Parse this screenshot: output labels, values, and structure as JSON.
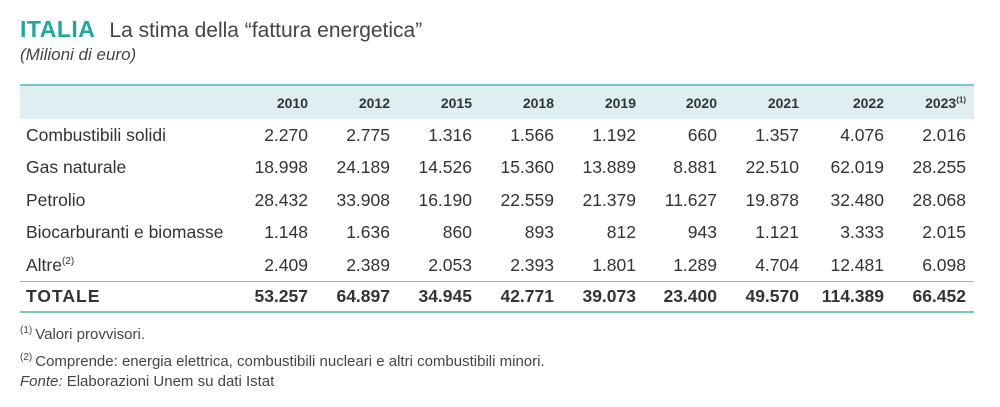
{
  "header": {
    "country": "ITALIA",
    "title": "La stima della “fattura energetica”",
    "subtitle": "(Milioni di euro)"
  },
  "table": {
    "years": [
      "2010",
      "2012",
      "2015",
      "2018",
      "2019",
      "2020",
      "2021",
      "2022",
      "2023"
    ],
    "last_year_note": "(1)",
    "rows": [
      {
        "label": "Combustibili solidi",
        "note": "",
        "values": [
          "2.270",
          "2.775",
          "1.316",
          "1.566",
          "1.192",
          "660",
          "1.357",
          "4.076",
          "2.016"
        ]
      },
      {
        "label": "Gas naturale",
        "note": "",
        "values": [
          "18.998",
          "24.189",
          "14.526",
          "15.360",
          "13.889",
          "8.881",
          "22.510",
          "62.019",
          "28.255"
        ]
      },
      {
        "label": "Petrolio",
        "note": "",
        "values": [
          "28.432",
          "33.908",
          "16.190",
          "22.559",
          "21.379",
          "11.627",
          "19.878",
          "32.480",
          "28.068"
        ]
      },
      {
        "label": "Biocarburanti e biomasse",
        "note": "",
        "values": [
          "1.148",
          "1.636",
          "860",
          "893",
          "812",
          "943",
          "1.121",
          "3.333",
          "2.015"
        ]
      },
      {
        "label": "Altre",
        "note": "(2)",
        "values": [
          "2.409",
          "2.389",
          "2.053",
          "2.393",
          "1.801",
          "1.289",
          "4.704",
          "12.481",
          "6.098"
        ]
      }
    ],
    "total": {
      "label": "TOTALE",
      "values": [
        "53.257",
        "64.897",
        "34.945",
        "42.771",
        "39.073",
        "23.400",
        "49.570",
        "114.389",
        "66.452"
      ]
    }
  },
  "notes": [
    {
      "mark": "(1)",
      "text": "Valori provvisori."
    },
    {
      "mark": "(2)",
      "text": "Comprende: energia elettrica, combustibili nucleari e altri combustibili minori."
    }
  ],
  "source": {
    "label": "Fonte:",
    "text": " Elaborazioni Unem su dati Istat"
  },
  "colors": {
    "accent": "#1ea8a2",
    "header_bg": "#ddeff0",
    "rule": "#7cc8c6"
  }
}
